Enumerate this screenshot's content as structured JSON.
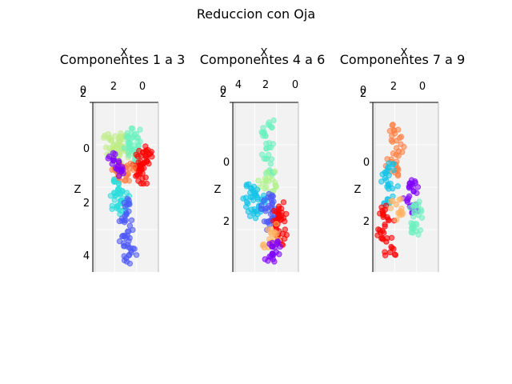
{
  "figure": {
    "title": "Reduccion con Oja"
  },
  "chart_data": [
    {
      "type": "scatter",
      "title": "Componentes 1 a 3",
      "xlabel": "X",
      "zlabel": "Z",
      "x_ticks": [
        "0",
        "2",
        "0"
      ],
      "z_ticks": [
        "0",
        "2",
        "4"
      ],
      "corner_tick": "2",
      "view": "3d-projection",
      "series": [
        {
          "color": "#c0ec89",
          "x": [
            1.3,
            1.8,
            2.2,
            1.5,
            2.6,
            1.0,
            2.0,
            1.7,
            2.4
          ],
          "z": [
            -0.4,
            -0.2,
            0.1,
            0.2,
            -0.3,
            0.3,
            0.5,
            0.0,
            0.2
          ]
        },
        {
          "color": "#6cf1c0",
          "x": [
            0.4,
            0.8,
            0.2,
            0.6,
            1.0,
            0.5
          ],
          "z": [
            -0.5,
            -0.3,
            0.0,
            0.2,
            -0.1,
            0.4
          ]
        },
        {
          "color": "#ff0000",
          "x": [
            -0.4,
            0.0,
            -0.2,
            0.3,
            -0.5,
            0.1,
            -0.1
          ],
          "z": [
            0.2,
            0.4,
            0.7,
            0.9,
            0.6,
            1.1,
            1.3
          ]
        },
        {
          "color": "#ff7d40",
          "x": [
            1.6,
            2.0,
            1.2,
            0.9,
            1.8
          ],
          "z": [
            0.8,
            1.0,
            1.2,
            0.9,
            1.3
          ]
        },
        {
          "color": "#7f00ff",
          "x": [
            2.2,
            1.9,
            1.6
          ],
          "z": [
            0.5,
            0.8,
            1.0
          ]
        },
        {
          "color": "#2adddd",
          "x": [
            1.8,
            1.5,
            2.1,
            1.2,
            1.9,
            1.6
          ],
          "z": [
            1.5,
            1.8,
            2.0,
            2.2,
            2.4,
            2.6
          ]
        },
        {
          "color": "#4c58f8",
          "x": [
            1.0,
            1.3,
            0.9,
            1.1,
            1.4,
            0.8,
            1.2
          ],
          "z": [
            2.3,
            2.8,
            3.2,
            3.6,
            3.9,
            4.2,
            4.5
          ]
        }
      ]
    },
    {
      "type": "scatter",
      "title": "Componentes 4 a 6",
      "xlabel": "X",
      "zlabel": "Z",
      "x_ticks": [
        "4",
        "2",
        "0"
      ],
      "z_ticks": [
        "0",
        "2"
      ],
      "corner_tick": "2",
      "view": "3d-projection",
      "series": [
        {
          "color": "#6cf1c0",
          "x": [
            1.9,
            2.1,
            1.7,
            2.0,
            1.8
          ],
          "z": [
            -2.0,
            -1.5,
            -1.0,
            -0.5,
            0.0
          ]
        },
        {
          "color": "#b0f28c",
          "x": [
            1.8,
            2.3,
            1.5
          ],
          "z": [
            0.3,
            0.6,
            0.9
          ]
        },
        {
          "color": "#0ec2e8",
          "x": [
            3.2,
            2.8,
            3.5,
            2.6,
            3.0,
            2.4
          ],
          "z": [
            0.8,
            1.1,
            1.4,
            1.6,
            1.9,
            1.3
          ]
        },
        {
          "color": "#4c58f8",
          "x": [
            1.9,
            1.6,
            2.1,
            1.4,
            1.8
          ],
          "z": [
            1.2,
            1.5,
            1.8,
            2.1,
            2.4
          ]
        },
        {
          "color": "#ff0000",
          "x": [
            1.1,
            0.9,
            1.3,
            0.8,
            1.2,
            1.0
          ],
          "z": [
            1.6,
            2.0,
            2.4,
            2.8,
            3.1,
            2.2
          ]
        },
        {
          "color": "#ffb360",
          "x": [
            1.7,
            1.4,
            1.9
          ],
          "z": [
            2.6,
            3.0,
            3.4
          ]
        },
        {
          "color": "#7f00ff",
          "x": [
            1.6,
            1.3,
            1.8
          ],
          "z": [
            3.2,
            3.6,
            3.8
          ]
        }
      ]
    },
    {
      "type": "scatter",
      "title": "Componentes 7 a 9",
      "xlabel": "X",
      "zlabel": "Z",
      "x_ticks": [
        "0",
        "2",
        "0"
      ],
      "z_ticks": [
        "0",
        "2"
      ],
      "corner_tick": "2",
      "view": "3d-projection",
      "series": [
        {
          "color": "#ff7d40",
          "x": [
            2.2,
            2.0,
            1.8,
            2.4,
            2.1
          ],
          "z": [
            -0.8,
            -0.4,
            0.0,
            0.4,
            0.8
          ]
        },
        {
          "color": "#0ec2e8",
          "x": [
            2.6,
            2.9,
            2.3,
            2.7
          ],
          "z": [
            0.6,
            1.0,
            1.4,
            1.8
          ]
        },
        {
          "color": "#7f00ff",
          "x": [
            0.9,
            0.6,
            1.1,
            0.7
          ],
          "z": [
            1.2,
            1.5,
            1.9,
            2.2
          ]
        },
        {
          "color": "#6cf1c0",
          "x": [
            0.5,
            0.2,
            0.8,
            0.4
          ],
          "z": [
            2.0,
            2.4,
            2.7,
            3.0
          ]
        },
        {
          "color": "#ff0000",
          "x": [
            2.9,
            2.6,
            3.1,
            2.8,
            2.5
          ],
          "z": [
            2.2,
            2.6,
            3.0,
            3.4,
            3.8
          ]
        },
        {
          "color": "#ffb360",
          "x": [
            2.0,
            1.7
          ],
          "z": [
            2.0,
            2.4
          ]
        }
      ]
    }
  ]
}
